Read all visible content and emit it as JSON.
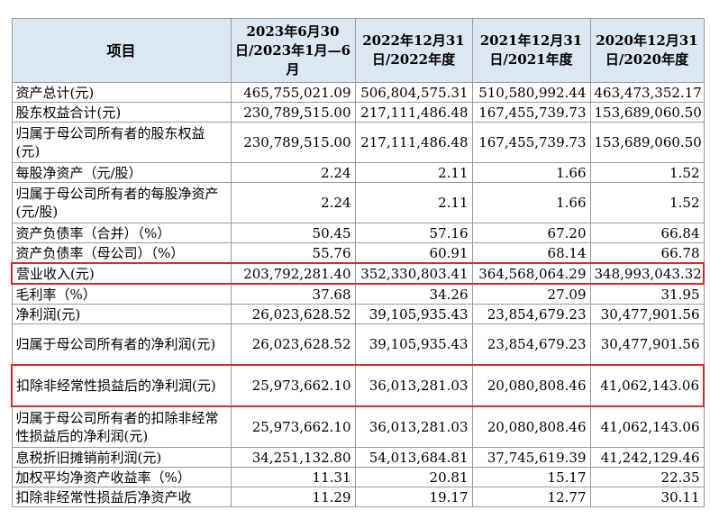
{
  "header": {
    "item": "项目",
    "col1": "2023年6月30日/2023年1月—6月",
    "col2": "2022年12月31日/2022年度",
    "col3": "2021年12月31日/2021年度",
    "col4": "2020年12月31日/2020年度"
  },
  "rows": [
    {
      "label": "资产总计(元)",
      "v1": "465,755,021.09",
      "v2": "506,804,575.31",
      "v3": "510,580,992.44",
      "v4": "463,473,352.17"
    },
    {
      "label": "股东权益合计(元)",
      "v1": "230,789,515.00",
      "v2": "217,111,486.48",
      "v3": "167,455,739.73",
      "v4": "153,689,060.50"
    },
    {
      "label": "归属于母公司所有者的股东权益(元)",
      "v1": "230,789,515.00",
      "v2": "217,111,486.48",
      "v3": "167,455,739.73",
      "v4": "153,689,060.50"
    },
    {
      "label": "每股净资产（元/股）",
      "v1": "2.24",
      "v2": "2.11",
      "v3": "1.66",
      "v4": "1.52"
    },
    {
      "label": "归属于母公司所有者的每股净资产(元/股)",
      "v1": "2.24",
      "v2": "2.11",
      "v3": "1.66",
      "v4": "1.52"
    },
    {
      "label": "资产负债率（合并）（%）",
      "v1": "50.45",
      "v2": "57.16",
      "v3": "67.20",
      "v4": "66.84"
    },
    {
      "label": "资产负债率（母公司）（%）",
      "v1": "55.76",
      "v2": "60.91",
      "v3": "68.14",
      "v4": "66.78"
    },
    {
      "label": "营业收入(元)",
      "v1": "203,792,281.40",
      "v2": "352,330,803.41",
      "v3": "364,568,064.29",
      "v4": "348,993,043.32"
    },
    {
      "label": "毛利率（%）",
      "v1": "37.68",
      "v2": "34.26",
      "v3": "27.09",
      "v4": "31.95"
    },
    {
      "label": "净利润(元)",
      "v1": "26,023,628.52",
      "v2": "39,105,935.43",
      "v3": "23,854,679.23",
      "v4": "30,477,901.56"
    },
    {
      "label": "归属于母公司所有者的净利润(元)",
      "v1": "26,023,628.52",
      "v2": "39,105,935.43",
      "v3": "23,854,679.23",
      "v4": "30,477,901.56"
    },
    {
      "label": "扣除非经常性损益后的净利润(元)",
      "v1": "25,973,662.10",
      "v2": "36,013,281.03",
      "v3": "20,080,808.46",
      "v4": "41,062,143.06"
    },
    {
      "label": "归属于母公司所有者的扣除非经常性损益后的净利润(元)",
      "v1": "25,973,662.10",
      "v2": "36,013,281.03",
      "v3": "20,080,808.46",
      "v4": "41,062,143.06"
    },
    {
      "label": "息税折旧摊销前利润(元)",
      "v1": "34,251,132.80",
      "v2": "54,013,684.81",
      "v3": "37,745,619.39",
      "v4": "41,242,129.46"
    },
    {
      "label": "加权平均净资产收益率（%）",
      "v1": "11.31",
      "v2": "20.81",
      "v3": "15.17",
      "v4": "22.35"
    },
    {
      "label": "扣除非经常性损益后净资产收",
      "v1": "11.29",
      "v2": "19.17",
      "v3": "12.77",
      "v4": "30.11"
    }
  ],
  "highlight_color": "#d42b2b",
  "header_bg": "#dce7f4"
}
